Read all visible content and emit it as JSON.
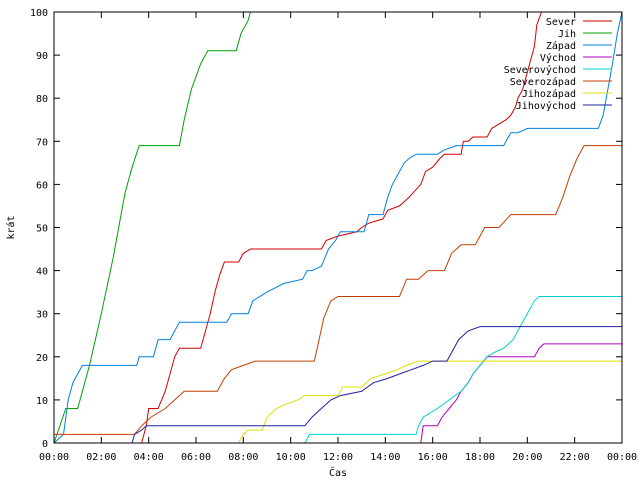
{
  "chart_data": {
    "type": "line",
    "title": "",
    "xlabel": "Čas",
    "ylabel": "krát",
    "xlim": [
      0,
      24
    ],
    "ylim": [
      0,
      100
    ],
    "x_tick_values": [
      0,
      2,
      4,
      6,
      8,
      10,
      12,
      14,
      16,
      18,
      20,
      22,
      24
    ],
    "x_tick_labels": [
      "00:00",
      "02:00",
      "04:00",
      "06:00",
      "08:00",
      "10:00",
      "12:00",
      "14:00",
      "16:00",
      "18:00",
      "20:00",
      "22:00",
      "00:00"
    ],
    "y_ticks": [
      0,
      10,
      20,
      30,
      40,
      50,
      60,
      70,
      80,
      90,
      100
    ],
    "grid": false,
    "legend_position": "top-right",
    "series": [
      {
        "name": "Sever",
        "color": "#d00000",
        "points": [
          [
            0,
            0
          ],
          [
            3.7,
            0
          ],
          [
            3.9,
            4
          ],
          [
            4.0,
            8
          ],
          [
            4.4,
            8
          ],
          [
            4.7,
            12
          ],
          [
            4.9,
            16
          ],
          [
            5.1,
            20
          ],
          [
            5.3,
            22
          ],
          [
            6.2,
            22
          ],
          [
            6.4,
            26
          ],
          [
            6.6,
            30
          ],
          [
            6.8,
            35
          ],
          [
            7.0,
            39
          ],
          [
            7.2,
            42
          ],
          [
            7.8,
            42
          ],
          [
            8.0,
            44
          ],
          [
            8.3,
            45
          ],
          [
            11.3,
            45
          ],
          [
            11.5,
            47
          ],
          [
            12.0,
            48
          ],
          [
            12.8,
            49
          ],
          [
            13.0,
            50
          ],
          [
            13.3,
            51
          ],
          [
            13.9,
            52
          ],
          [
            14.1,
            54
          ],
          [
            14.6,
            55
          ],
          [
            14.8,
            56
          ],
          [
            15.0,
            57
          ],
          [
            15.5,
            60
          ],
          [
            15.7,
            63
          ],
          [
            16.0,
            64
          ],
          [
            16.3,
            66
          ],
          [
            16.5,
            67
          ],
          [
            17.2,
            67
          ],
          [
            17.3,
            70
          ],
          [
            17.5,
            70
          ],
          [
            17.7,
            71
          ],
          [
            18.3,
            71
          ],
          [
            18.5,
            73
          ],
          [
            18.8,
            74
          ],
          [
            19.1,
            75
          ],
          [
            19.3,
            76
          ],
          [
            19.5,
            78
          ],
          [
            19.6,
            80
          ],
          [
            19.8,
            82
          ],
          [
            20.0,
            86
          ],
          [
            20.3,
            92
          ],
          [
            20.4,
            97
          ],
          [
            20.6,
            100
          ]
        ]
      },
      {
        "name": "Jih",
        "color": "#00a000",
        "points": [
          [
            0,
            0
          ],
          [
            0.5,
            8
          ],
          [
            1.0,
            8
          ],
          [
            1.5,
            18
          ],
          [
            2.0,
            30
          ],
          [
            2.5,
            43
          ],
          [
            3.0,
            58
          ],
          [
            3.3,
            64
          ],
          [
            3.6,
            69
          ],
          [
            5.3,
            69
          ],
          [
            5.5,
            75
          ],
          [
            5.8,
            82
          ],
          [
            6.2,
            88
          ],
          [
            6.5,
            91
          ],
          [
            7.7,
            91
          ],
          [
            7.9,
            95
          ],
          [
            8.0,
            96
          ],
          [
            8.2,
            98
          ],
          [
            8.3,
            100
          ]
        ]
      },
      {
        "name": "Západ",
        "color": "#0080e0",
        "points": [
          [
            0,
            0
          ],
          [
            0.4,
            2
          ],
          [
            0.6,
            10
          ],
          [
            0.8,
            14
          ],
          [
            1.2,
            18
          ],
          [
            3.5,
            18
          ],
          [
            3.6,
            20
          ],
          [
            4.2,
            20
          ],
          [
            4.4,
            24
          ],
          [
            4.9,
            24
          ],
          [
            5.1,
            26
          ],
          [
            5.3,
            28
          ],
          [
            7.3,
            28
          ],
          [
            7.5,
            30
          ],
          [
            8.2,
            30
          ],
          [
            8.4,
            33
          ],
          [
            9.0,
            35
          ],
          [
            9.7,
            37
          ],
          [
            10.5,
            38
          ],
          [
            10.7,
            40
          ],
          [
            10.9,
            40
          ],
          [
            11.3,
            41
          ],
          [
            11.6,
            45
          ],
          [
            11.9,
            47
          ],
          [
            12.1,
            49
          ],
          [
            13.1,
            49
          ],
          [
            13.3,
            53
          ],
          [
            13.9,
            53
          ],
          [
            14.1,
            57
          ],
          [
            14.3,
            60
          ],
          [
            14.6,
            63
          ],
          [
            14.8,
            65
          ],
          [
            15.0,
            66
          ],
          [
            15.3,
            67
          ],
          [
            16.2,
            67
          ],
          [
            16.5,
            68
          ],
          [
            17.0,
            69
          ],
          [
            19.0,
            69
          ],
          [
            19.3,
            72
          ],
          [
            19.6,
            72
          ],
          [
            20.0,
            73
          ],
          [
            23.0,
            73
          ],
          [
            23.2,
            76
          ],
          [
            23.4,
            82
          ],
          [
            23.6,
            88
          ],
          [
            23.8,
            95
          ],
          [
            24.0,
            100
          ]
        ]
      },
      {
        "name": "Východ",
        "color": "#b000c0",
        "points": [
          [
            15.5,
            0
          ],
          [
            15.6,
            4
          ],
          [
            16.2,
            4
          ],
          [
            16.4,
            6
          ],
          [
            16.7,
            8
          ],
          [
            17.0,
            10
          ],
          [
            17.2,
            12
          ],
          [
            17.5,
            14
          ],
          [
            17.7,
            16
          ],
          [
            18.0,
            18
          ],
          [
            18.3,
            20
          ],
          [
            20.3,
            20
          ],
          [
            20.5,
            22
          ],
          [
            20.7,
            23
          ],
          [
            24.0,
            23
          ]
        ]
      },
      {
        "name": "Severovýchod",
        "color": "#00d0d0",
        "points": [
          [
            10.6,
            0
          ],
          [
            10.8,
            2
          ],
          [
            15.3,
            2
          ],
          [
            15.4,
            4
          ],
          [
            15.6,
            6
          ],
          [
            16.2,
            8
          ],
          [
            16.7,
            10
          ],
          [
            17.2,
            12
          ],
          [
            17.5,
            14
          ],
          [
            17.7,
            16
          ],
          [
            18.0,
            18
          ],
          [
            18.3,
            20
          ],
          [
            18.6,
            21
          ],
          [
            19.0,
            22
          ],
          [
            19.4,
            24
          ],
          [
            19.7,
            27
          ],
          [
            20.0,
            30
          ],
          [
            20.3,
            33
          ],
          [
            20.5,
            34
          ],
          [
            24.0,
            34
          ]
        ]
      },
      {
        "name": "Severozápad",
        "color": "#c04000",
        "points": [
          [
            0,
            2
          ],
          [
            3.4,
            2
          ],
          [
            3.7,
            4
          ],
          [
            4.1,
            6
          ],
          [
            4.7,
            8
          ],
          [
            5.1,
            10
          ],
          [
            5.5,
            12
          ],
          [
            6.9,
            12
          ],
          [
            7.2,
            15
          ],
          [
            7.5,
            17
          ],
          [
            8.0,
            18
          ],
          [
            8.5,
            19
          ],
          [
            11.0,
            19
          ],
          [
            11.2,
            24
          ],
          [
            11.4,
            29
          ],
          [
            11.7,
            33
          ],
          [
            12.0,
            34
          ],
          [
            14.6,
            34
          ],
          [
            14.9,
            38
          ],
          [
            15.4,
            38
          ],
          [
            15.8,
            40
          ],
          [
            16.5,
            40
          ],
          [
            16.8,
            44
          ],
          [
            17.2,
            46
          ],
          [
            17.8,
            46
          ],
          [
            18.2,
            50
          ],
          [
            18.8,
            50
          ],
          [
            19.3,
            53
          ],
          [
            21.2,
            53
          ],
          [
            21.5,
            57
          ],
          [
            21.8,
            62
          ],
          [
            22.1,
            66
          ],
          [
            22.4,
            69
          ],
          [
            24.0,
            69
          ]
        ]
      },
      {
        "name": "Jihozápad",
        "color": "#e0e000",
        "points": [
          [
            7.8,
            0
          ],
          [
            8.0,
            2
          ],
          [
            8.2,
            3
          ],
          [
            8.8,
            3
          ],
          [
            9.0,
            6
          ],
          [
            9.4,
            8
          ],
          [
            9.8,
            9
          ],
          [
            10.3,
            10
          ],
          [
            10.6,
            11
          ],
          [
            12.0,
            11
          ],
          [
            12.2,
            13
          ],
          [
            13.0,
            13
          ],
          [
            13.4,
            15
          ],
          [
            14.0,
            16
          ],
          [
            14.5,
            17
          ],
          [
            14.9,
            18
          ],
          [
            15.4,
            19
          ],
          [
            24.0,
            19
          ]
        ]
      },
      {
        "name": "Jihovýchod",
        "color": "#2020a0",
        "points": [
          [
            3.3,
            0
          ],
          [
            3.4,
            2
          ],
          [
            3.7,
            3
          ],
          [
            3.9,
            4
          ],
          [
            10.6,
            4
          ],
          [
            10.9,
            6
          ],
          [
            11.3,
            8
          ],
          [
            11.7,
            10
          ],
          [
            12.1,
            11
          ],
          [
            13.0,
            12
          ],
          [
            13.5,
            14
          ],
          [
            14.1,
            15
          ],
          [
            14.6,
            16
          ],
          [
            15.1,
            17
          ],
          [
            15.6,
            18
          ],
          [
            16.0,
            19
          ],
          [
            16.6,
            19
          ],
          [
            16.9,
            22
          ],
          [
            17.1,
            24
          ],
          [
            17.5,
            26
          ],
          [
            18.0,
            27
          ],
          [
            24.0,
            27
          ]
        ]
      }
    ]
  }
}
